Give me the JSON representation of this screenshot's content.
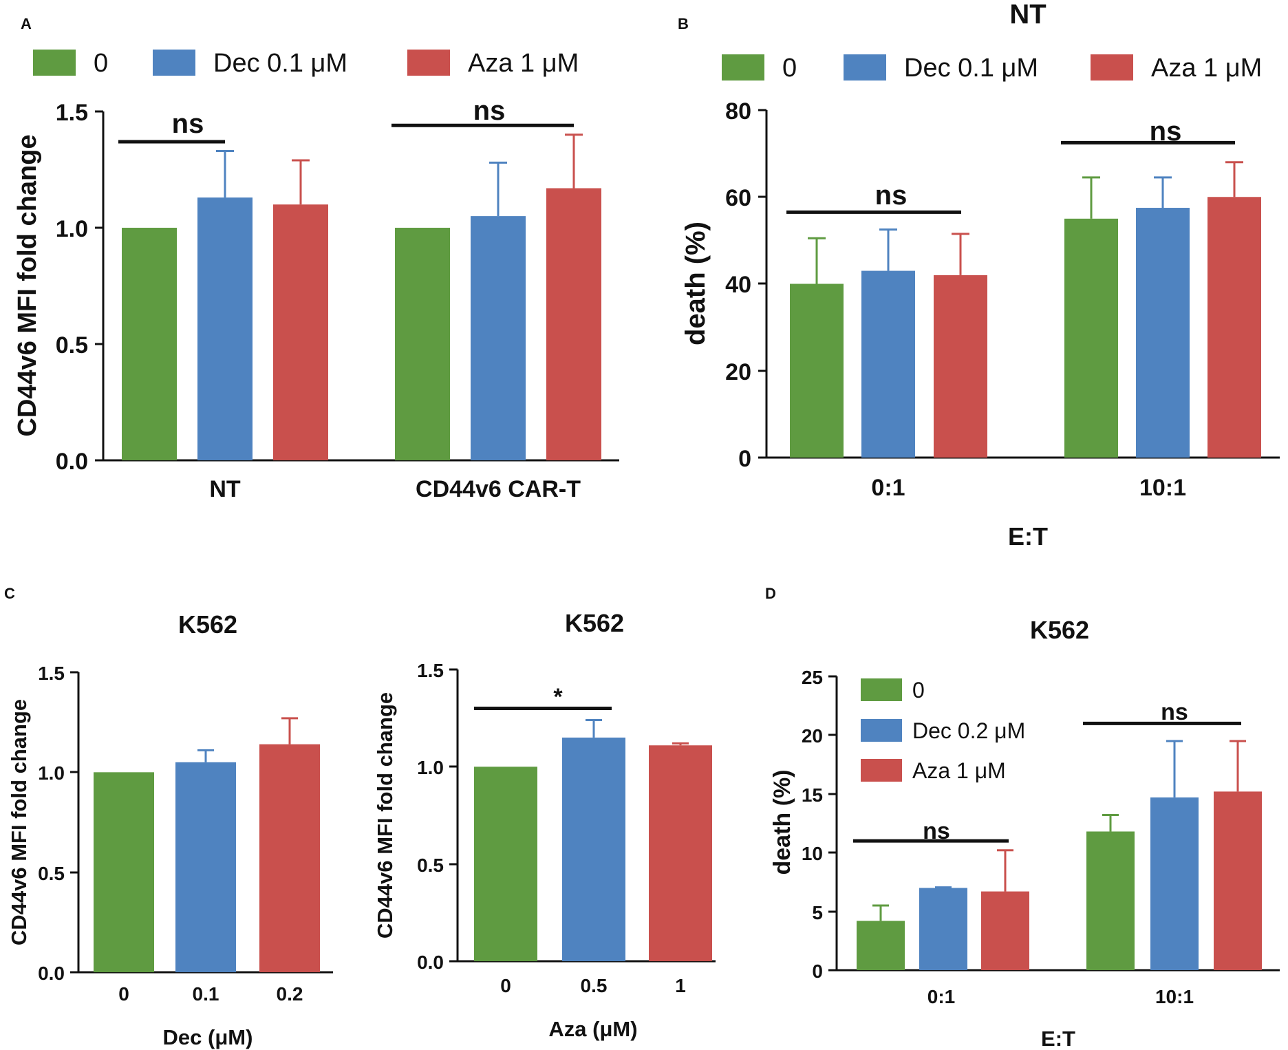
{
  "colors": {
    "green": "#5f9b41",
    "blue": "#4f83c0",
    "red": "#c9504d",
    "ink": "#111111"
  },
  "chart_data": [
    {
      "panel": "A",
      "type": "bar",
      "title": "",
      "categories": [
        "NT",
        "CD44v6 CAR-T"
      ],
      "series": [
        {
          "name": "0",
          "color": "green",
          "values": [
            1.0,
            1.0
          ],
          "errors": [
            0,
            0
          ]
        },
        {
          "name": "Dec 0.1 μM",
          "color": "blue",
          "values": [
            1.13,
            1.05
          ],
          "errors": [
            0.2,
            0.23
          ]
        },
        {
          "name": "Aza 1 μM",
          "color": "red",
          "values": [
            1.1,
            1.17
          ],
          "errors": [
            0.19,
            0.23
          ]
        }
      ],
      "xlabel": "",
      "ylabel": "CD44v6 MFI fold change",
      "ylim": [
        0,
        1.5
      ],
      "yticks": [
        "0.0",
        "0.5",
        "1.0",
        "1.5"
      ],
      "legend": "top",
      "annotations": [
        {
          "text": "ns",
          "from_cat": 0,
          "from_series": 0,
          "to_series": 1,
          "level": 1.37
        },
        {
          "text": "ns",
          "from_cat": 1,
          "from_series": 0,
          "to_series": 2,
          "level": 1.44
        }
      ]
    },
    {
      "panel": "B",
      "type": "bar",
      "title": "NT",
      "categories": [
        "0:1",
        "10:1"
      ],
      "series": [
        {
          "name": "0",
          "color": "green",
          "values": [
            40,
            55
          ],
          "errors": [
            10.5,
            9.5
          ]
        },
        {
          "name": "Dec 0.1 μM",
          "color": "blue",
          "values": [
            43,
            57.5
          ],
          "errors": [
            9.5,
            7
          ]
        },
        {
          "name": "Aza 1 μM",
          "color": "red",
          "values": [
            42,
            60
          ],
          "errors": [
            9.5,
            8
          ]
        }
      ],
      "xlabel": "E:T",
      "ylabel": "death (%)",
      "ylim": [
        0,
        80
      ],
      "yticks": [
        "0",
        "20",
        "40",
        "60",
        "80"
      ],
      "legend": "top",
      "annotations": [
        {
          "text": "ns",
          "from_cat": 0,
          "from_series": 0,
          "to_series": 2,
          "level": 56.5
        },
        {
          "text": "ns",
          "from_cat": 1,
          "from_series": 0,
          "to_series": 2,
          "level": 72.5
        }
      ]
    },
    {
      "panel": "C",
      "type": "bar",
      "title": "K562",
      "categories": [
        "0",
        "0.1",
        "0.2"
      ],
      "series": [
        {
          "name": "Dec",
          "colors": [
            "green",
            "blue",
            "red"
          ],
          "values": [
            1.0,
            1.05,
            1.14
          ],
          "errors": [
            0,
            0.06,
            0.13
          ]
        }
      ],
      "xlabel": "Dec (μM)",
      "ylabel": "CD44v6 MFI fold change",
      "ylim": [
        0,
        1.5
      ],
      "yticks": [
        "0.0",
        "0.5",
        "1.0",
        "1.5"
      ],
      "annotations": []
    },
    {
      "panel": "C",
      "type": "bar",
      "title": "K562",
      "categories": [
        "0",
        "0.5",
        "1"
      ],
      "series": [
        {
          "name": "Aza",
          "colors": [
            "green",
            "blue",
            "red"
          ],
          "values": [
            1.0,
            1.15,
            1.11
          ],
          "errors": [
            0,
            0.09,
            0.01
          ]
        }
      ],
      "xlabel": "Aza (μM)",
      "ylabel": "CD44v6 MFI fold change",
      "ylim": [
        0,
        1.5
      ],
      "yticks": [
        "0.0",
        "0.5",
        "1.0",
        "1.5"
      ],
      "annotations": [
        {
          "text": "*",
          "from_cat": 0,
          "to_cat": 1,
          "level": 1.3
        }
      ]
    },
    {
      "panel": "D",
      "type": "bar",
      "title": "K562",
      "categories": [
        "0:1",
        "10:1"
      ],
      "series": [
        {
          "name": "0",
          "color": "green",
          "values": [
            4.2,
            11.8
          ],
          "errors": [
            1.3,
            1.4
          ]
        },
        {
          "name": "Dec 0.2 μM",
          "color": "blue",
          "values": [
            7.0,
            14.7
          ],
          "errors": [
            0.05,
            4.8
          ]
        },
        {
          "name": "Aza 1 μM",
          "color": "red",
          "values": [
            6.7,
            15.2
          ],
          "errors": [
            3.5,
            4.3
          ]
        }
      ],
      "xlabel": "E:T",
      "ylabel": "death (%)",
      "ylim": [
        0,
        25
      ],
      "yticks": [
        "0",
        "5",
        "10",
        "15",
        "20",
        "25"
      ],
      "legend": "top-left",
      "annotations": [
        {
          "text": "ns",
          "from_cat": 0,
          "from_series": 0,
          "to_series": 2,
          "level": 11.0
        },
        {
          "text": "ns",
          "from_cat": 1,
          "from_series": 0,
          "to_series": 2,
          "level": 21.0
        }
      ]
    }
  ],
  "panel_letters": [
    "A",
    "B",
    "C",
    "D"
  ]
}
